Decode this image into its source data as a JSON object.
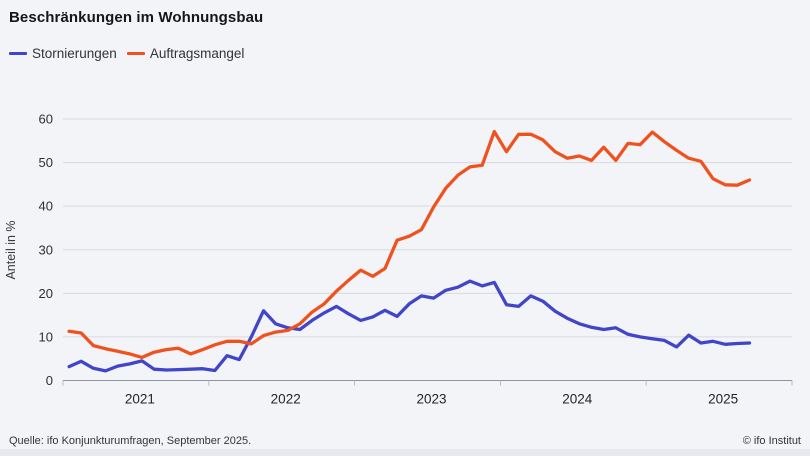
{
  "header": {
    "title": "Beschränkungen im Wohnungsbau"
  },
  "footer": {
    "source": "Quelle: ifo Konjunkturumfragen, September 2025.",
    "copyright": "© ifo Institut"
  },
  "chart_data": {
    "type": "line",
    "title": "Beschränkungen im Wohnungsbau",
    "xlabel": "",
    "ylabel": "Anteil in %",
    "ylim": [
      0,
      60
    ],
    "yticks": [
      0,
      10,
      20,
      30,
      40,
      50,
      60
    ],
    "grid": "horizontal",
    "legend_position": "top-left",
    "x_frequency": "monthly",
    "x_start": "2021-01",
    "x_end": "2025-09",
    "x_axis_range": [
      "2021-01",
      "2026-01"
    ],
    "x_year_labels": [
      "2021",
      "2022",
      "2023",
      "2024",
      "2025"
    ],
    "series": [
      {
        "name": "Stornierungen",
        "color": "#4146c8",
        "values": [
          3.2,
          4.4,
          2.8,
          2.2,
          3.3,
          3.8,
          4.5,
          2.6,
          2.4,
          2.5,
          2.6,
          2.7,
          2.3,
          5.7,
          4.8,
          10.0,
          16.0,
          13.0,
          12.1,
          11.7,
          13.8,
          15.5,
          17.0,
          15.3,
          13.8,
          14.6,
          16.1,
          14.7,
          17.6,
          19.4,
          18.9,
          20.7,
          21.4,
          22.8,
          21.7,
          22.5,
          17.4,
          17.0,
          19.4,
          18.2,
          15.9,
          14.3,
          13.0,
          12.2,
          11.7,
          12.1,
          10.6,
          10.0,
          9.6,
          9.2,
          7.7,
          10.4,
          8.6,
          9.0,
          8.3,
          8.5,
          8.6
        ]
      },
      {
        "name": "Auftragsmangel",
        "color": "#f0521f",
        "values": [
          11.3,
          10.9,
          8.0,
          7.3,
          6.7,
          6.1,
          5.3,
          6.5,
          7.1,
          7.4,
          6.1,
          7.1,
          8.2,
          9.0,
          9.0,
          8.4,
          10.3,
          11.1,
          11.5,
          13.0,
          15.7,
          17.6,
          20.5,
          23.0,
          25.3,
          23.9,
          25.7,
          32.2,
          33.1,
          34.6,
          39.8,
          44.1,
          47.1,
          49.0,
          49.4,
          57.1,
          52.5,
          56.5,
          56.5,
          55.2,
          52.5,
          51.0,
          51.5,
          50.5,
          53.5,
          50.5,
          54.4,
          54.1,
          57.0,
          54.8,
          52.8,
          51.0,
          50.3,
          46.3,
          44.9,
          44.8,
          46.0
        ]
      }
    ]
  }
}
